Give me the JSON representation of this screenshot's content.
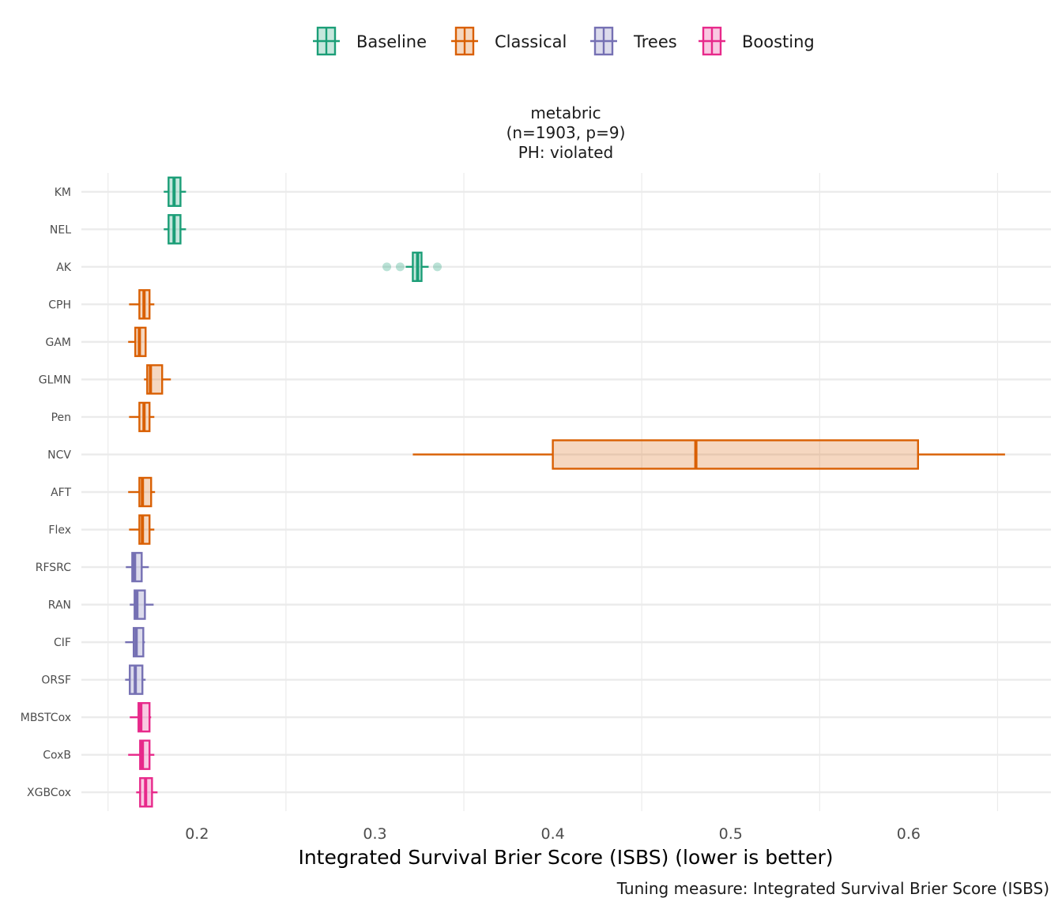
{
  "chart_data": {
    "type": "boxplot",
    "title_lines": [
      "metabric",
      "(n=1903, p=9)",
      "PH: violated"
    ],
    "xlabel": "Integrated Survival Brier Score (ISBS) (lower is better)",
    "caption": "Tuning measure: Integrated Survival Brier Score (ISBS)",
    "xlim": [
      0.135,
      0.68
    ],
    "xticks": [
      0.2,
      0.3,
      0.4,
      0.5,
      0.6
    ],
    "xtick_labels": [
      "0.2",
      "0.3",
      "0.4",
      "0.5",
      "0.6"
    ],
    "minor_grid": [
      0.15,
      0.25,
      0.35,
      0.45,
      0.55,
      0.65
    ],
    "legend": {
      "placement": "top",
      "items": [
        {
          "label": "Baseline",
          "color": "#1b9e77"
        },
        {
          "label": "Classical",
          "color": "#d95f02"
        },
        {
          "label": "Trees",
          "color": "#7570b3"
        },
        {
          "label": "Boosting",
          "color": "#e7298a"
        }
      ]
    },
    "models": [
      {
        "name": "KM",
        "group": 0,
        "stats": [
          0.1813,
          0.184,
          0.1871,
          0.1907,
          0.1938
        ],
        "outliers": []
      },
      {
        "name": "NEL",
        "group": 0,
        "stats": [
          0.1813,
          0.184,
          0.1871,
          0.1907,
          0.1938
        ],
        "outliers": []
      },
      {
        "name": "AK",
        "group": 0,
        "stats": [
          0.3173,
          0.3213,
          0.324,
          0.3262,
          0.3302
        ],
        "outliers": [
          0.3067,
          0.3142,
          0.3351
        ]
      },
      {
        "name": "CPH",
        "group": 1,
        "stats": [
          0.1618,
          0.1676,
          0.1702,
          0.1733,
          0.176
        ],
        "outliers": []
      },
      {
        "name": "GAM",
        "group": 1,
        "stats": [
          0.1613,
          0.1653,
          0.1676,
          0.1711,
          0.1711
        ],
        "outliers": []
      },
      {
        "name": "GLMN",
        "group": 1,
        "stats": [
          0.1702,
          0.172,
          0.1738,
          0.1804,
          0.1853
        ],
        "outliers": []
      },
      {
        "name": "Pen",
        "group": 1,
        "stats": [
          0.1618,
          0.1676,
          0.1702,
          0.1733,
          0.176
        ],
        "outliers": []
      },
      {
        "name": "NCV",
        "group": 1,
        "stats": [
          0.3213,
          0.4,
          0.4804,
          0.6053,
          0.6542
        ],
        "outliers": []
      },
      {
        "name": "AFT",
        "group": 1,
        "stats": [
          0.1613,
          0.1676,
          0.1693,
          0.1742,
          0.1764
        ],
        "outliers": []
      },
      {
        "name": "Flex",
        "group": 1,
        "stats": [
          0.1618,
          0.1676,
          0.1693,
          0.1733,
          0.176
        ],
        "outliers": []
      },
      {
        "name": "RFSRC",
        "group": 2,
        "stats": [
          0.16,
          0.1636,
          0.1649,
          0.1689,
          0.1729
        ],
        "outliers": []
      },
      {
        "name": "RAN",
        "group": 2,
        "stats": [
          0.1622,
          0.1649,
          0.1662,
          0.1707,
          0.1756
        ],
        "outliers": []
      },
      {
        "name": "CIF",
        "group": 2,
        "stats": [
          0.1596,
          0.1644,
          0.1658,
          0.1698,
          0.1707
        ],
        "outliers": []
      },
      {
        "name": "ORSF",
        "group": 2,
        "stats": [
          0.1596,
          0.1622,
          0.1653,
          0.1693,
          0.1711
        ],
        "outliers": []
      },
      {
        "name": "MBSTCox",
        "group": 3,
        "stats": [
          0.1622,
          0.1671,
          0.1684,
          0.1733,
          0.1742
        ],
        "outliers": []
      },
      {
        "name": "CoxB",
        "group": 3,
        "stats": [
          0.1613,
          0.168,
          0.1693,
          0.1733,
          0.176
        ],
        "outliers": []
      },
      {
        "name": "XGBCox",
        "group": 3,
        "stats": [
          0.1658,
          0.168,
          0.1711,
          0.1747,
          0.1778
        ],
        "outliers": []
      }
    ]
  }
}
